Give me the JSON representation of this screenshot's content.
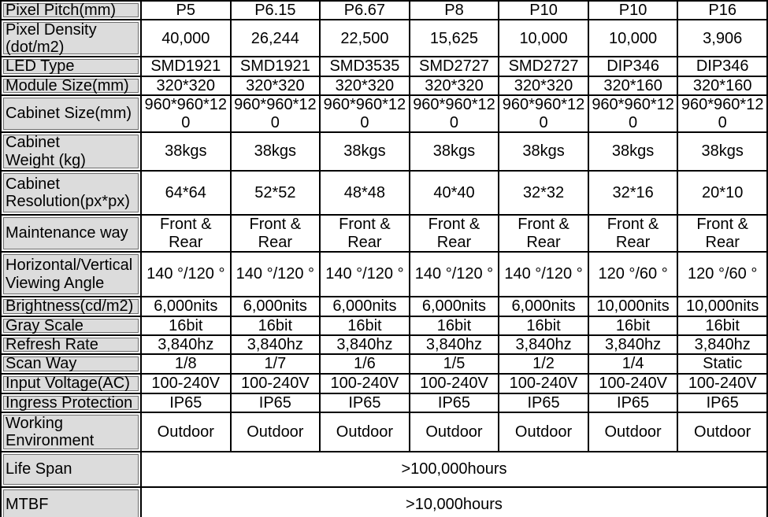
{
  "colors": {
    "label_background": "#dcdcdc",
    "border": "#000000",
    "text": "#000000"
  },
  "table": {
    "rows": [
      {
        "label": "Pixel Pitch(mm)",
        "values": [
          "P5",
          "P6.15",
          "P6.67",
          "P8",
          "P10",
          "P10",
          "P16"
        ]
      },
      {
        "label": "Pixel Density\n(dot/m2)",
        "values": [
          "40,000",
          "26,244",
          "22,500",
          "15,625",
          "10,000",
          "10,000",
          "3,906"
        ]
      },
      {
        "label": "LED Type",
        "values": [
          "SMD1921",
          "SMD1921",
          "SMD3535",
          "SMD2727",
          "SMD2727",
          "DIP346",
          "DIP346"
        ]
      },
      {
        "label": "Module Size(mm)",
        "values": [
          "320*320",
          "320*320",
          "320*320",
          "320*320",
          "320*320",
          "320*160",
          "320*160"
        ]
      },
      {
        "label": "Cabinet Size(mm)",
        "values": [
          "960*960*12\n0",
          "960*960*12\n0",
          "960*960*12\n0",
          "960*960*12\n0",
          "960*960*12\n0",
          "960*960*12\n0",
          "960*960*12\n0"
        ]
      },
      {
        "label": "Cabinet\nWeight (kg)",
        "values": [
          "38kgs",
          "38kgs",
          "38kgs",
          "38kgs",
          "38kgs",
          "38kgs",
          "38kgs"
        ]
      },
      {
        "label": "Cabinet\nResolution(px*px)",
        "values": [
          "64*64",
          "52*52",
          "48*48",
          "40*40",
          "32*32",
          "32*16",
          "20*10"
        ]
      },
      {
        "label": "Maintenance way",
        "values": [
          "Front &\nRear",
          "Front &\nRear",
          "Front &\nRear",
          "Front &\nRear",
          "Front &\nRear",
          "Front &\nRear",
          "Front &\nRear"
        ]
      },
      {
        "label": "Horizontal/Vertical\nViewing Angle",
        "values": [
          "140 °/120 °",
          "140 °/120 °",
          "140 °/120 °",
          "140 °/120 °",
          "140 °/120 °",
          "120 °/60 °",
          "120 °/60 °"
        ]
      },
      {
        "label": "Brightness(cd/m2)",
        "values": [
          "6,000nits",
          "6,000nits",
          "6,000nits",
          "6,000nits",
          "6,000nits",
          "10,000nits",
          "10,000nits"
        ]
      },
      {
        "label": "Gray Scale",
        "values": [
          "16bit",
          "16bit",
          "16bit",
          "16bit",
          "16bit",
          "16bit",
          "16bit"
        ]
      },
      {
        "label": "Refresh Rate",
        "values": [
          "3,840hz",
          "3,840hz",
          "3,840hz",
          "3,840hz",
          "3,840hz",
          "3,840hz",
          "3,840hz"
        ]
      },
      {
        "label": "Scan Way",
        "values": [
          "1/8",
          "1/7",
          "1/6",
          "1/5",
          "1/2",
          "1/4",
          "Static"
        ]
      },
      {
        "label": "Input Voltage(AC)",
        "values": [
          "100-240V",
          "100-240V",
          "100-240V",
          "100-240V",
          "100-240V",
          "100-240V",
          "100-240V"
        ]
      },
      {
        "label": "Ingress Protection",
        "values": [
          "IP65",
          "IP65",
          "IP65",
          "IP65",
          "IP65",
          "IP65",
          "IP65"
        ]
      },
      {
        "label": "Working\nEnvironment",
        "values": [
          "Outdoor",
          "Outdoor",
          "Outdoor",
          "Outdoor",
          "Outdoor",
          "Outdoor",
          "Outdoor"
        ]
      },
      {
        "label": "Life Span",
        "span_value": ">100,000hours"
      },
      {
        "label": "MTBF",
        "span_value": ">10,000hours"
      }
    ]
  }
}
